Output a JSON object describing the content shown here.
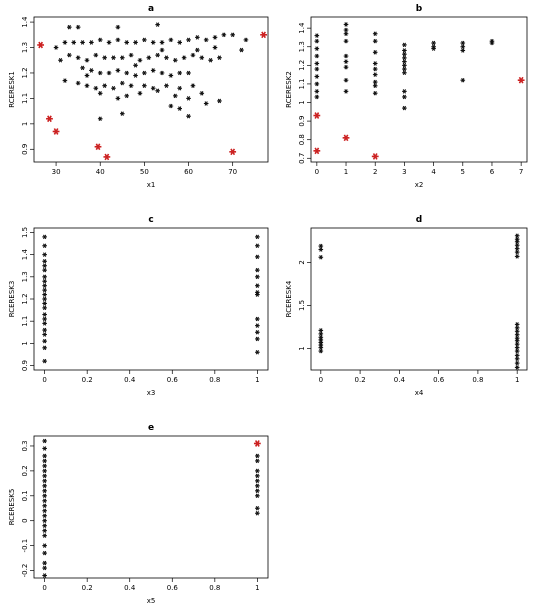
{
  "colors": {
    "normal": "#111111",
    "highlight": "#cc2222",
    "axis": "#000000"
  },
  "chart_data": [
    {
      "type": "scatter",
      "title": "a",
      "xlabel": "x1",
      "ylabel": "RCERESK1",
      "xlim": [
        25,
        78
      ],
      "ylim": [
        0.85,
        1.42
      ],
      "xticks": [
        30,
        40,
        50,
        60,
        70
      ],
      "yticks": [
        0.9,
        1.0,
        1.1,
        1.2,
        1.3,
        1.4
      ],
      "series": [
        {
          "role": "normal",
          "points": [
            [
              33,
              1.38
            ],
            [
              35,
              1.38
            ],
            [
              44,
              1.38
            ],
            [
              53,
              1.39
            ],
            [
              30,
              1.3
            ],
            [
              32,
              1.32
            ],
            [
              34,
              1.32
            ],
            [
              36,
              1.32
            ],
            [
              38,
              1.32
            ],
            [
              40,
              1.33
            ],
            [
              42,
              1.32
            ],
            [
              44,
              1.33
            ],
            [
              46,
              1.32
            ],
            [
              48,
              1.32
            ],
            [
              50,
              1.33
            ],
            [
              52,
              1.32
            ],
            [
              54,
              1.32
            ],
            [
              56,
              1.33
            ],
            [
              58,
              1.32
            ],
            [
              60,
              1.33
            ],
            [
              62,
              1.34
            ],
            [
              64,
              1.33
            ],
            [
              66,
              1.34
            ],
            [
              68,
              1.35
            ],
            [
              70,
              1.35
            ],
            [
              73,
              1.33
            ],
            [
              31,
              1.25
            ],
            [
              33,
              1.27
            ],
            [
              35,
              1.26
            ],
            [
              37,
              1.25
            ],
            [
              39,
              1.27
            ],
            [
              41,
              1.26
            ],
            [
              43,
              1.26
            ],
            [
              45,
              1.26
            ],
            [
              47,
              1.27
            ],
            [
              49,
              1.25
            ],
            [
              51,
              1.26
            ],
            [
              53,
              1.27
            ],
            [
              55,
              1.26
            ],
            [
              57,
              1.25
            ],
            [
              59,
              1.26
            ],
            [
              61,
              1.27
            ],
            [
              63,
              1.26
            ],
            [
              65,
              1.25
            ],
            [
              67,
              1.26
            ],
            [
              36,
              1.22
            ],
            [
              38,
              1.21
            ],
            [
              40,
              1.2
            ],
            [
              42,
              1.2
            ],
            [
              44,
              1.21
            ],
            [
              46,
              1.2
            ],
            [
              48,
              1.19
            ],
            [
              50,
              1.2
            ],
            [
              52,
              1.21
            ],
            [
              54,
              1.2
            ],
            [
              56,
              1.19
            ],
            [
              58,
              1.2
            ],
            [
              60,
              1.2
            ],
            [
              32,
              1.17
            ],
            [
              35,
              1.16
            ],
            [
              37,
              1.15
            ],
            [
              39,
              1.14
            ],
            [
              41,
              1.15
            ],
            [
              43,
              1.14
            ],
            [
              45,
              1.16
            ],
            [
              47,
              1.15
            ],
            [
              50,
              1.15
            ],
            [
              52,
              1.14
            ],
            [
              55,
              1.15
            ],
            [
              58,
              1.14
            ],
            [
              61,
              1.15
            ],
            [
              40,
              1.12
            ],
            [
              44,
              1.1
            ],
            [
              46,
              1.11
            ],
            [
              49,
              1.12
            ],
            [
              53,
              1.13
            ],
            [
              57,
              1.11
            ],
            [
              60,
              1.1
            ],
            [
              63,
              1.12
            ],
            [
              64,
              1.08
            ],
            [
              67,
              1.09
            ],
            [
              56,
              1.07
            ],
            [
              58,
              1.06
            ],
            [
              60,
              1.03
            ],
            [
              40,
              1.02
            ],
            [
              45,
              1.04
            ],
            [
              37,
              1.19
            ],
            [
              48,
              1.23
            ],
            [
              54,
              1.29
            ],
            [
              62,
              1.29
            ],
            [
              66,
              1.3
            ],
            [
              72,
              1.29
            ]
          ]
        },
        {
          "role": "highlight",
          "points": [
            [
              26.5,
              1.31
            ],
            [
              77,
              1.35
            ],
            [
              28.5,
              1.02
            ],
            [
              30,
              0.97
            ],
            [
              39.5,
              0.91
            ],
            [
              41.5,
              0.87
            ],
            [
              70,
              0.89
            ]
          ]
        }
      ]
    },
    {
      "type": "scatter",
      "title": "b",
      "xlabel": "x2",
      "ylabel": "RCERESK2",
      "xlim": [
        -0.2,
        7.2
      ],
      "ylim": [
        0.68,
        1.46
      ],
      "xticks": [
        0,
        1,
        2,
        3,
        4,
        5,
        6,
        7
      ],
      "yticks": [
        0.7,
        0.8,
        0.9,
        1.0,
        1.1,
        1.2,
        1.3,
        1.4
      ],
      "series": [
        {
          "role": "normal",
          "points": [
            [
              0,
              1.36
            ],
            [
              0,
              1.33
            ],
            [
              0,
              1.29
            ],
            [
              0,
              1.25
            ],
            [
              0,
              1.21
            ],
            [
              0,
              1.18
            ],
            [
              0,
              1.14
            ],
            [
              0,
              1.1
            ],
            [
              0,
              1.06
            ],
            [
              0,
              1.03
            ],
            [
              1,
              1.42
            ],
            [
              1,
              1.39
            ],
            [
              1,
              1.37
            ],
            [
              1,
              1.33
            ],
            [
              1,
              1.25
            ],
            [
              1,
              1.22
            ],
            [
              1,
              1.19
            ],
            [
              1,
              1.12
            ],
            [
              1,
              1.06
            ],
            [
              2,
              1.37
            ],
            [
              2,
              1.33
            ],
            [
              2,
              1.27
            ],
            [
              2,
              1.21
            ],
            [
              2,
              1.18
            ],
            [
              2,
              1.15
            ],
            [
              2,
              1.11
            ],
            [
              2,
              1.09
            ],
            [
              2,
              1.05
            ],
            [
              3,
              1.31
            ],
            [
              3,
              1.28
            ],
            [
              3,
              1.26
            ],
            [
              3,
              1.24
            ],
            [
              3,
              1.22
            ],
            [
              3,
              1.2
            ],
            [
              3,
              1.18
            ],
            [
              3,
              1.16
            ],
            [
              3,
              1.06
            ],
            [
              3,
              1.03
            ],
            [
              3,
              0.97
            ],
            [
              4,
              1.32
            ],
            [
              4,
              1.3
            ],
            [
              4,
              1.29
            ],
            [
              5,
              1.32
            ],
            [
              5,
              1.3
            ],
            [
              5,
              1.28
            ],
            [
              5,
              1.12
            ],
            [
              6,
              1.33
            ],
            [
              6,
              1.32
            ]
          ]
        },
        {
          "role": "highlight",
          "points": [
            [
              0,
              0.93
            ],
            [
              0,
              0.74
            ],
            [
              1,
              0.81
            ],
            [
              2,
              0.71
            ],
            [
              7,
              1.12
            ]
          ]
        }
      ]
    },
    {
      "type": "scatter",
      "title": "c",
      "xlabel": "x3",
      "ylabel": "RCERESK3",
      "xlim": [
        -0.05,
        1.05
      ],
      "ylim": [
        0.88,
        1.52
      ],
      "xticks": [
        0.0,
        0.2,
        0.4,
        0.6,
        0.8,
        1.0
      ],
      "yticks": [
        0.9,
        1.0,
        1.1,
        1.2,
        1.3,
        1.4,
        1.5
      ],
      "series": [
        {
          "role": "normal",
          "points": [
            [
              0,
              1.48
            ],
            [
              0,
              1.44
            ],
            [
              0,
              1.4
            ],
            [
              0,
              1.37
            ],
            [
              0,
              1.35
            ],
            [
              0,
              1.33
            ],
            [
              0,
              1.3
            ],
            [
              0,
              1.28
            ],
            [
              0,
              1.26
            ],
            [
              0,
              1.24
            ],
            [
              0,
              1.22
            ],
            [
              0,
              1.2
            ],
            [
              0,
              1.18
            ],
            [
              0,
              1.16
            ],
            [
              0,
              1.13
            ],
            [
              0,
              1.11
            ],
            [
              0,
              1.09
            ],
            [
              0,
              1.06
            ],
            [
              0,
              1.04
            ],
            [
              0,
              1.01
            ],
            [
              0,
              0.98
            ],
            [
              0,
              0.92
            ],
            [
              1,
              1.48
            ],
            [
              1,
              1.44
            ],
            [
              1,
              1.39
            ],
            [
              1,
              1.33
            ],
            [
              1,
              1.3
            ],
            [
              1,
              1.26
            ],
            [
              1,
              1.23
            ],
            [
              1,
              1.22
            ],
            [
              1,
              1.11
            ],
            [
              1,
              1.08
            ],
            [
              1,
              1.05
            ],
            [
              1,
              1.02
            ],
            [
              1,
              0.96
            ]
          ]
        }
      ]
    },
    {
      "type": "scatter",
      "title": "d",
      "xlabel": "x4",
      "ylabel": "RCERESK4",
      "xlim": [
        -0.05,
        1.05
      ],
      "ylim": [
        0.75,
        2.4
      ],
      "xticks": [
        0.0,
        0.2,
        0.4,
        0.6,
        0.8,
        1.0
      ],
      "yticks": [
        1.0,
        1.5,
        2.0
      ],
      "series": [
        {
          "role": "normal",
          "points": [
            [
              0,
              2.19
            ],
            [
              0,
              2.15
            ],
            [
              0,
              2.06
            ],
            [
              0,
              1.21
            ],
            [
              0,
              1.17
            ],
            [
              0,
              1.13
            ],
            [
              0,
              1.1
            ],
            [
              0,
              1.07
            ],
            [
              0,
              1.04
            ],
            [
              0,
              1.01
            ],
            [
              0,
              0.97
            ],
            [
              1,
              2.31
            ],
            [
              1,
              2.27
            ],
            [
              1,
              2.24
            ],
            [
              1,
              2.2
            ],
            [
              1,
              2.16
            ],
            [
              1,
              2.12
            ],
            [
              1,
              2.07
            ],
            [
              1,
              1.28
            ],
            [
              1,
              1.24
            ],
            [
              1,
              1.2
            ],
            [
              1,
              1.16
            ],
            [
              1,
              1.12
            ],
            [
              1,
              1.09
            ],
            [
              1,
              1.05
            ],
            [
              1,
              1.01
            ],
            [
              1,
              0.97
            ],
            [
              1,
              0.92
            ],
            [
              1,
              0.88
            ],
            [
              1,
              0.83
            ],
            [
              1,
              0.78
            ]
          ]
        }
      ]
    },
    {
      "type": "scatter",
      "title": "e",
      "xlabel": "x5",
      "ylabel": "RCERESK5",
      "xlim": [
        -0.05,
        1.05
      ],
      "ylim": [
        -0.23,
        0.34
      ],
      "xticks": [
        0.0,
        0.2,
        0.4,
        0.6,
        0.8,
        1.0
      ],
      "yticks": [
        -0.2,
        -0.1,
        0.0,
        0.1,
        0.2,
        0.3
      ],
      "series": [
        {
          "role": "normal",
          "points": [
            [
              0,
              0.32
            ],
            [
              0,
              0.29
            ],
            [
              0,
              0.26
            ],
            [
              0,
              0.24
            ],
            [
              0,
              0.22
            ],
            [
              0,
              0.2
            ],
            [
              0,
              0.18
            ],
            [
              0,
              0.16
            ],
            [
              0,
              0.14
            ],
            [
              0,
              0.12
            ],
            [
              0,
              0.1
            ],
            [
              0,
              0.08
            ],
            [
              0,
              0.06
            ],
            [
              0,
              0.04
            ],
            [
              0,
              0.02
            ],
            [
              0,
              0.0
            ],
            [
              0,
              -0.02
            ],
            [
              0,
              -0.04
            ],
            [
              0,
              -0.06
            ],
            [
              0,
              -0.1
            ],
            [
              0,
              -0.13
            ],
            [
              0,
              -0.17
            ],
            [
              0,
              -0.19
            ],
            [
              0,
              -0.22
            ],
            [
              1,
              0.26
            ],
            [
              1,
              0.24
            ],
            [
              1,
              0.2
            ],
            [
              1,
              0.18
            ],
            [
              1,
              0.16
            ],
            [
              1,
              0.14
            ],
            [
              1,
              0.12
            ],
            [
              1,
              0.1
            ],
            [
              1,
              0.05
            ],
            [
              1,
              0.03
            ]
          ]
        },
        {
          "role": "highlight",
          "points": [
            [
              1,
              0.31
            ]
          ]
        }
      ]
    }
  ]
}
